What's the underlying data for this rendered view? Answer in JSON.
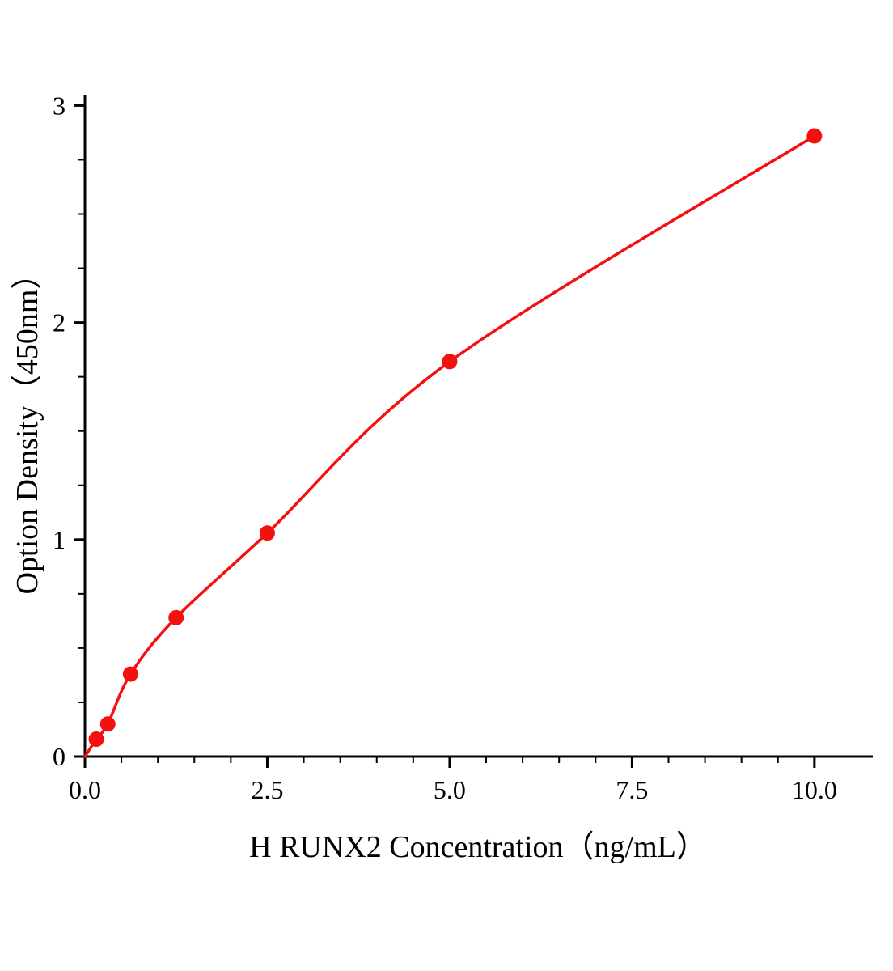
{
  "chart_data": {
    "type": "scatter",
    "title": "",
    "xlabel": "H RUNX2 Concentration（ng/mL）",
    "ylabel": "Option Density（450nm）",
    "x": [
      0.156,
      0.313,
      0.625,
      1.25,
      2.5,
      5.0,
      10.0
    ],
    "y": [
      0.08,
      0.15,
      0.38,
      0.64,
      1.03,
      1.82,
      2.86
    ],
    "curve_start": {
      "x": 0,
      "y": 0
    },
    "x_major_ticks": [
      0.0,
      2.5,
      5.0,
      7.5,
      10.0
    ],
    "x_tick_labels": [
      "0.0",
      "2.5",
      "5.0",
      "7.5",
      "10.0"
    ],
    "y_major_ticks": [
      0,
      1,
      2,
      3
    ],
    "y_tick_labels": [
      "0",
      "1",
      "2",
      "3"
    ],
    "x_minor_step": 0.5,
    "y_minor_step": 0.25,
    "xlim": [
      0,
      10.8
    ],
    "ylim": [
      0,
      3.05
    ],
    "grid": false,
    "legend": null,
    "line_color": "#f50f0f",
    "marker_color": "#f50f0f",
    "axis_color": "#000000"
  }
}
